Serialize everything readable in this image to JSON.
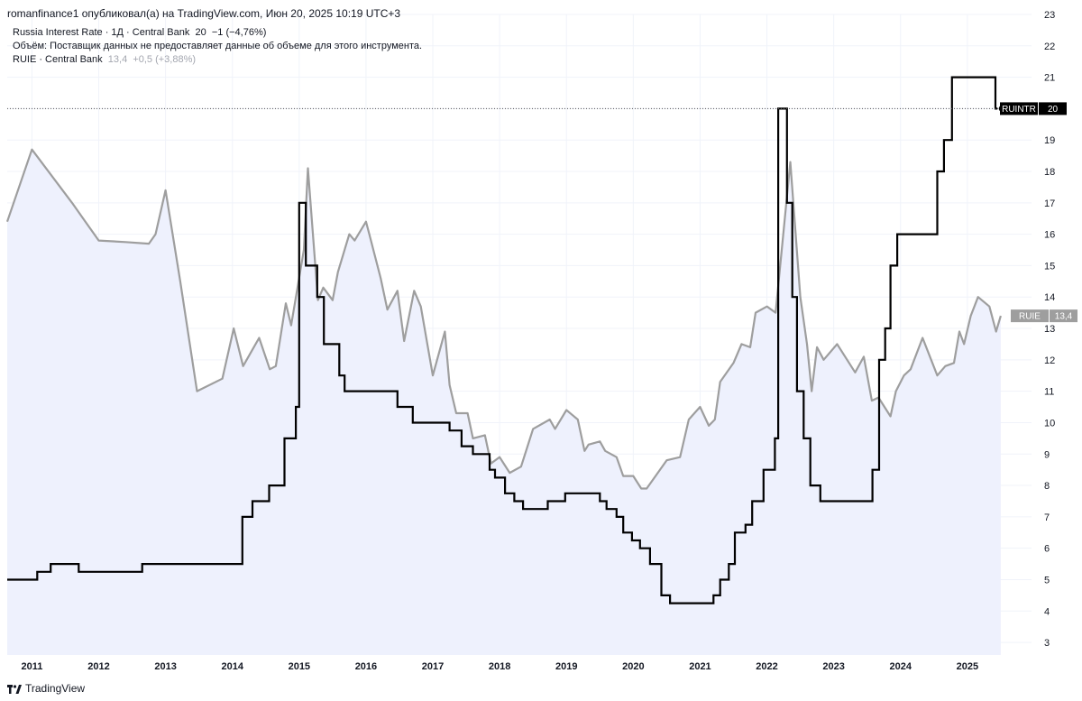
{
  "header": {
    "published": "romanfinance1 опубликовал(а) на TradingView.com, Июн 20, 2025 10:19 UTC+3"
  },
  "legend": {
    "main_title": "Russia Interest Rate · 1Д · Central Bank",
    "main_value": "20",
    "main_change": "−1 (−4,76%)",
    "volume_note": "Объём: Поставщик данных не предоставляет данные об объеме для этого инструмента.",
    "second_title": "RUIE · Central Bank",
    "second_value": "13,4",
    "second_change": "+0,5 (+3,88%)"
  },
  "footer": {
    "brand": "TradingView"
  },
  "colors": {
    "ruintr": "#000000",
    "ruie": "#9e9e9e",
    "ruie_fill": "#eef1fd",
    "ruie_tag": "#9e9e9e",
    "ruintr_tag": "#000000",
    "grid": "#f0f3fa"
  },
  "chart_data": {
    "type": "line",
    "x_unit": "year",
    "xlim": [
      2010.63,
      2025.96
    ],
    "ylim": [
      2.6,
      23.0
    ],
    "yticks": [
      3,
      4,
      5,
      6,
      7,
      8,
      9,
      10,
      11,
      12,
      13,
      14,
      15,
      16,
      17,
      18,
      19,
      20,
      21,
      22,
      23
    ],
    "xticks": [
      2011,
      2012,
      2013,
      2014,
      2015,
      2016,
      2017,
      2018,
      2019,
      2020,
      2021,
      2022,
      2023,
      2024,
      2025
    ],
    "grid": true,
    "series": [
      {
        "name": "RUIE",
        "style": "area-line",
        "last_label": "RUIE",
        "last_value": "13,4",
        "points": [
          [
            2010.63,
            16.4
          ],
          [
            2011.0,
            18.7
          ],
          [
            2011.6,
            17.0
          ],
          [
            2011.8,
            16.4
          ],
          [
            2012.0,
            15.8
          ],
          [
            2012.4,
            15.75
          ],
          [
            2012.75,
            15.7
          ],
          [
            2012.85,
            16.0
          ],
          [
            2013.0,
            17.4
          ],
          [
            2013.22,
            14.5
          ],
          [
            2013.47,
            11.0
          ],
          [
            2013.85,
            11.4
          ],
          [
            2014.02,
            13.0
          ],
          [
            2014.16,
            11.8
          ],
          [
            2014.4,
            12.7
          ],
          [
            2014.56,
            11.7
          ],
          [
            2014.65,
            11.8
          ],
          [
            2014.8,
            13.8
          ],
          [
            2014.88,
            13.1
          ],
          [
            2015.07,
            15.5
          ],
          [
            2015.13,
            18.1
          ],
          [
            2015.28,
            13.9
          ],
          [
            2015.36,
            14.3
          ],
          [
            2015.5,
            13.9
          ],
          [
            2015.58,
            14.8
          ],
          [
            2015.75,
            16.0
          ],
          [
            2015.83,
            15.8
          ],
          [
            2016.0,
            16.4
          ],
          [
            2016.05,
            16.0
          ],
          [
            2016.22,
            14.6
          ],
          [
            2016.32,
            13.6
          ],
          [
            2016.47,
            14.2
          ],
          [
            2016.57,
            12.6
          ],
          [
            2016.72,
            14.2
          ],
          [
            2016.82,
            13.7
          ],
          [
            2017.0,
            11.5
          ],
          [
            2017.18,
            12.9
          ],
          [
            2017.25,
            11.2
          ],
          [
            2017.35,
            10.3
          ],
          [
            2017.52,
            10.3
          ],
          [
            2017.6,
            9.5
          ],
          [
            2017.78,
            9.6
          ],
          [
            2017.87,
            8.7
          ],
          [
            2018.0,
            8.9
          ],
          [
            2018.15,
            8.4
          ],
          [
            2018.32,
            8.6
          ],
          [
            2018.5,
            9.8
          ],
          [
            2018.75,
            10.1
          ],
          [
            2018.83,
            9.8
          ],
          [
            2019.0,
            10.4
          ],
          [
            2019.17,
            10.1
          ],
          [
            2019.27,
            9.1
          ],
          [
            2019.33,
            9.3
          ],
          [
            2019.5,
            9.4
          ],
          [
            2019.58,
            9.1
          ],
          [
            2019.75,
            8.9
          ],
          [
            2019.85,
            8.3
          ],
          [
            2020.0,
            8.3
          ],
          [
            2020.12,
            7.9
          ],
          [
            2020.2,
            7.9
          ],
          [
            2020.5,
            8.8
          ],
          [
            2020.7,
            8.9
          ],
          [
            2020.83,
            10.1
          ],
          [
            2021.0,
            10.5
          ],
          [
            2021.13,
            9.9
          ],
          [
            2021.22,
            10.1
          ],
          [
            2021.3,
            11.3
          ],
          [
            2021.5,
            11.9
          ],
          [
            2021.62,
            12.5
          ],
          [
            2021.75,
            12.4
          ],
          [
            2021.83,
            13.5
          ],
          [
            2022.0,
            13.7
          ],
          [
            2022.13,
            13.5
          ],
          [
            2022.35,
            18.3
          ],
          [
            2022.5,
            14.0
          ],
          [
            2022.6,
            12.5
          ],
          [
            2022.67,
            11.0
          ],
          [
            2022.75,
            12.4
          ],
          [
            2022.85,
            12.0
          ],
          [
            2023.05,
            12.5
          ],
          [
            2023.32,
            11.6
          ],
          [
            2023.45,
            12.1
          ],
          [
            2023.57,
            10.7
          ],
          [
            2023.67,
            10.8
          ],
          [
            2023.85,
            10.2
          ],
          [
            2023.93,
            11.0
          ],
          [
            2024.05,
            11.5
          ],
          [
            2024.15,
            11.7
          ],
          [
            2024.33,
            12.7
          ],
          [
            2024.55,
            11.5
          ],
          [
            2024.67,
            11.8
          ],
          [
            2024.8,
            11.9
          ],
          [
            2024.88,
            12.9
          ],
          [
            2024.95,
            12.5
          ],
          [
            2025.05,
            13.4
          ],
          [
            2025.16,
            14.0
          ],
          [
            2025.33,
            13.7
          ],
          [
            2025.43,
            12.9
          ],
          [
            2025.5,
            13.4
          ]
        ]
      },
      {
        "name": "RUINTR",
        "style": "step",
        "last_label": "RUINTR",
        "last_value": "20",
        "points": [
          [
            2010.63,
            5.0
          ],
          [
            2011.08,
            5.25
          ],
          [
            2011.28,
            5.5
          ],
          [
            2011.7,
            5.25
          ],
          [
            2012.65,
            5.5
          ],
          [
            2014.15,
            7.0
          ],
          [
            2014.3,
            7.5
          ],
          [
            2014.55,
            8.0
          ],
          [
            2014.78,
            9.5
          ],
          [
            2014.95,
            10.5
          ],
          [
            2015.0,
            17.0
          ],
          [
            2015.1,
            15.0
          ],
          [
            2015.27,
            14.0
          ],
          [
            2015.37,
            12.5
          ],
          [
            2015.6,
            11.5
          ],
          [
            2015.68,
            11.0
          ],
          [
            2016.47,
            10.5
          ],
          [
            2016.7,
            10.0
          ],
          [
            2017.25,
            9.75
          ],
          [
            2017.43,
            9.25
          ],
          [
            2017.6,
            9.0
          ],
          [
            2017.85,
            8.5
          ],
          [
            2017.93,
            8.25
          ],
          [
            2018.08,
            7.75
          ],
          [
            2018.22,
            7.5
          ],
          [
            2018.35,
            7.25
          ],
          [
            2018.72,
            7.5
          ],
          [
            2018.98,
            7.75
          ],
          [
            2019.5,
            7.5
          ],
          [
            2019.6,
            7.25
          ],
          [
            2019.75,
            7.0
          ],
          [
            2019.85,
            6.5
          ],
          [
            2019.98,
            6.25
          ],
          [
            2020.1,
            6.0
          ],
          [
            2020.25,
            5.5
          ],
          [
            2020.42,
            4.5
          ],
          [
            2020.55,
            4.25
          ],
          [
            2021.2,
            4.5
          ],
          [
            2021.3,
            5.0
          ],
          [
            2021.43,
            5.5
          ],
          [
            2021.52,
            6.5
          ],
          [
            2021.68,
            6.75
          ],
          [
            2021.78,
            7.5
          ],
          [
            2021.95,
            8.5
          ],
          [
            2022.12,
            9.5
          ],
          [
            2022.17,
            20.0
          ],
          [
            2022.3,
            17.0
          ],
          [
            2022.38,
            14.0
          ],
          [
            2022.45,
            11.0
          ],
          [
            2022.55,
            9.5
          ],
          [
            2022.65,
            8.0
          ],
          [
            2022.8,
            7.5
          ],
          [
            2023.58,
            8.5
          ],
          [
            2023.68,
            12.0
          ],
          [
            2023.77,
            13.0
          ],
          [
            2023.85,
            15.0
          ],
          [
            2023.95,
            16.0
          ],
          [
            2024.55,
            18.0
          ],
          [
            2024.65,
            19.0
          ],
          [
            2024.77,
            21.0
          ],
          [
            2025.42,
            20.0
          ],
          [
            2025.45,
            20.0
          ]
        ]
      }
    ]
  }
}
